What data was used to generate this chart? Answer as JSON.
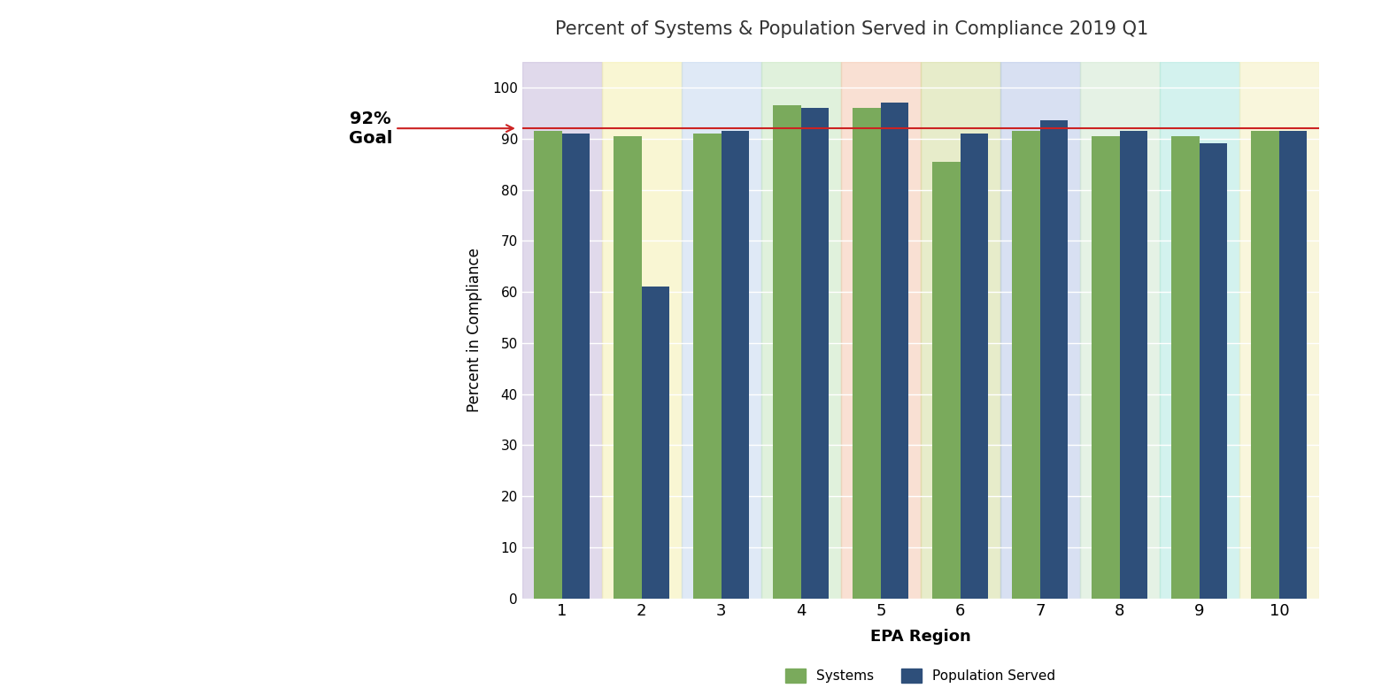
{
  "title": "Percent of Systems & Population Served in Compliance 2019 Q1",
  "regions": [
    1,
    2,
    3,
    4,
    5,
    6,
    7,
    8,
    9,
    10
  ],
  "systems": [
    91.5,
    90.5,
    91.0,
    96.5,
    96.0,
    85.5,
    91.5,
    90.5,
    90.5,
    91.5
  ],
  "population": [
    91.0,
    61.0,
    91.5,
    96.0,
    97.0,
    91.0,
    93.5,
    91.5,
    89.0,
    91.5
  ],
  "goal_line": 92,
  "goal_label": "92%\nGoal",
  "xlabel": "EPA Region",
  "ylabel": "Percent in Compliance",
  "ylim": [
    0,
    105
  ],
  "bar_colors": {
    "systems": "#7aaa5c",
    "population": "#2e4f7a"
  },
  "region_bg_colors": [
    "#c8bbdb",
    "#f5f0b0",
    "#c5d8f0",
    "#c8e6c0",
    "#f5c8b0",
    "#d5dda0",
    "#b8c8e8",
    "#d0e8d0",
    "#b0e8e0",
    "#f5f0c0"
  ],
  "legend_labels": [
    "Systems",
    "Population Served"
  ],
  "bar_width": 0.35,
  "goal_line_color": "#cc2222",
  "yticks": [
    0,
    10,
    20,
    30,
    40,
    50,
    60,
    70,
    80,
    90,
    100
  ]
}
